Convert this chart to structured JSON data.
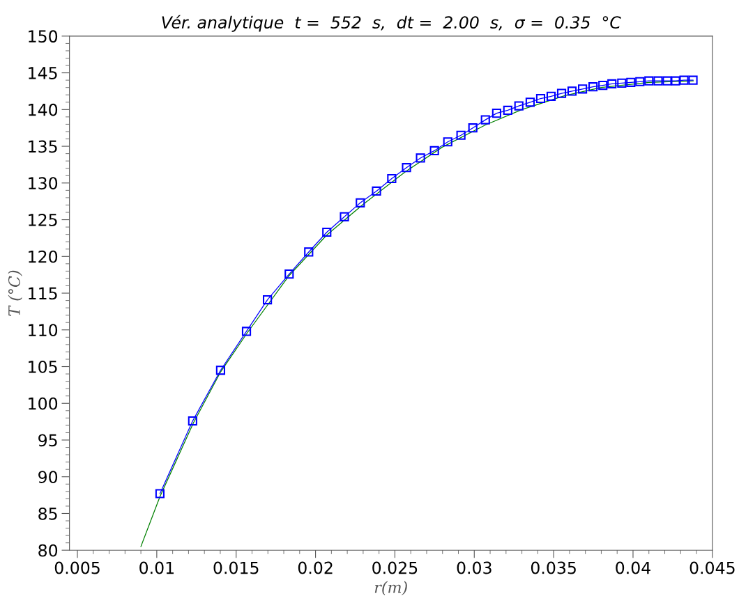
{
  "chart_data": {
    "type": "line",
    "title": "Vér. analytique  t =  552  s,  dt =  2.00  s,  σ =  0.35  °C",
    "xlabel": "r(m)",
    "ylabel": "T (°C)",
    "xlim": [
      0.0045,
      0.045
    ],
    "xticks": [
      0.005,
      0.01,
      0.015,
      0.02,
      0.025,
      0.03,
      0.035,
      0.04,
      0.045
    ],
    "ylim": [
      80,
      150
    ],
    "yticks": [
      80,
      85,
      90,
      95,
      100,
      105,
      110,
      115,
      120,
      125,
      130,
      135,
      140,
      145,
      150
    ],
    "grid": false,
    "legend": false,
    "series": [
      {
        "color": "#008000",
        "marker": "none",
        "line_style": "solid",
        "x": [
          0.009,
          0.0102,
          0.0123,
          0.014,
          0.0157,
          0.0183,
          0.0207,
          0.023,
          0.0257,
          0.028,
          0.0307,
          0.033,
          0.0357,
          0.038,
          0.041,
          0.0438
        ],
        "values": [
          80.5,
          87.3,
          97.3,
          104.2,
          109.6,
          117.3,
          122.9,
          127.1,
          131.6,
          134.9,
          137.9,
          140.0,
          141.9,
          143.0,
          143.7,
          143.9
        ]
      },
      {
        "color": "#0000ff",
        "marker": "square",
        "line_style": "solid",
        "x": [
          0.0102,
          0.01226,
          0.01402,
          0.01565,
          0.01697,
          0.01834,
          0.01957,
          0.02071,
          0.02182,
          0.02282,
          0.02384,
          0.0248,
          0.02573,
          0.02661,
          0.02749,
          0.02833,
          0.02916,
          0.02991,
          0.0307,
          0.03141,
          0.03211,
          0.03281,
          0.03352,
          0.03418,
          0.03484,
          0.0355,
          0.03616,
          0.03682,
          0.03748,
          0.0381,
          0.03867,
          0.03929,
          0.03986,
          0.04043,
          0.041,
          0.04158,
          0.04215,
          0.04268,
          0.04321,
          0.04378
        ],
        "values": [
          87.7,
          97.6,
          104.5,
          109.8,
          114.1,
          117.6,
          120.6,
          123.3,
          125.4,
          127.3,
          128.9,
          130.6,
          132.1,
          133.4,
          134.4,
          135.6,
          136.5,
          137.5,
          138.6,
          139.5,
          139.9,
          140.5,
          141.0,
          141.5,
          141.8,
          142.2,
          142.5,
          142.8,
          143.1,
          143.3,
          143.5,
          143.6,
          143.7,
          143.8,
          143.9,
          143.9,
          143.9,
          143.9,
          144.0,
          144.0
        ]
      }
    ]
  }
}
